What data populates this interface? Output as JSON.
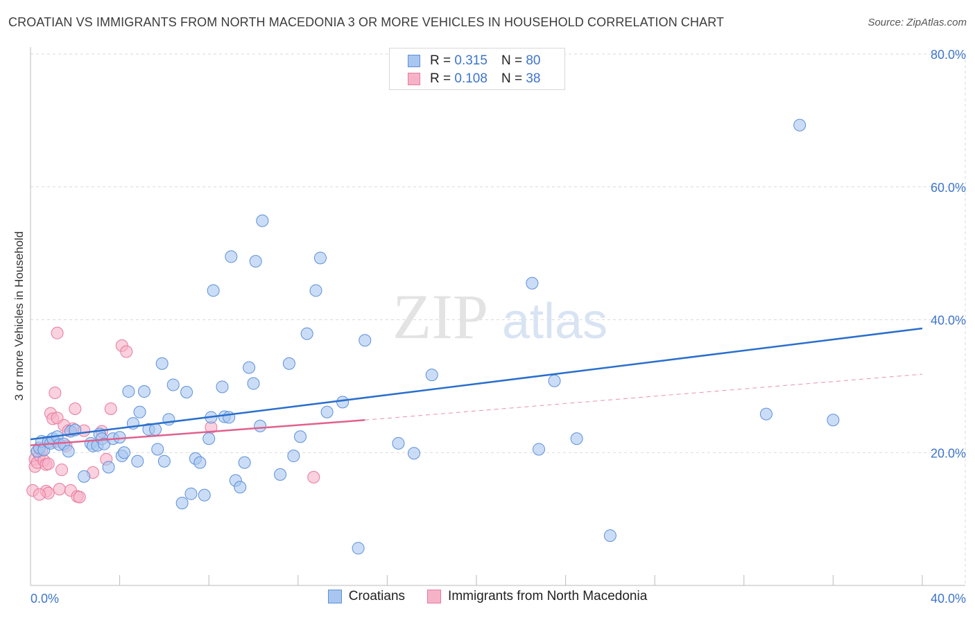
{
  "header": {
    "title": "CROATIAN VS IMMIGRANTS FROM NORTH MACEDONIA 3 OR MORE VEHICLES IN HOUSEHOLD CORRELATION CHART",
    "source": "Source: ZipAtlas.com"
  },
  "watermark": "ZIPatlas",
  "legend": {
    "r_label": "R =",
    "n_label": "N =",
    "series": [
      {
        "name": "Croatians",
        "r": "0.315",
        "n": "80"
      },
      {
        "name": "Immigrants from North Macedonia",
        "r": "0.108",
        "n": "38"
      }
    ]
  },
  "colors": {
    "croatians_fill": "#a9c6f0",
    "croatians_edge": "#5b8fd9",
    "croatians_line": "#2a6fcc",
    "macedonia_fill": "#f6b3c8",
    "macedonia_edge": "#e8789c",
    "macedonia_line": "#e0608e",
    "axis_text": "#3d74c9",
    "grid": "#d9d9d9"
  },
  "chart_data": {
    "type": "scatter",
    "title": "CROATIAN VS IMMIGRANTS FROM NORTH MACEDONIA 3 OR MORE VEHICLES IN HOUSEHOLD CORRELATION CHART",
    "xlabel": "",
    "ylabel": "3 or more Vehicles in Household",
    "xlim": [
      0,
      40
    ],
    "ylim": [
      0,
      80
    ],
    "x_tick_labels": [
      "0.0%",
      "40.0%"
    ],
    "y_ticks": [
      20,
      40,
      60,
      80
    ],
    "y_tick_labels": [
      "20.0%",
      "40.0%",
      "60.0%",
      "80.0%"
    ],
    "grid": true,
    "legend_position": "top-center",
    "series": [
      {
        "name": "Croatians",
        "r": 0.315,
        "n": 80,
        "trend": {
          "x": [
            0,
            40
          ],
          "y": [
            22.0,
            38.7
          ],
          "style": "solid"
        },
        "points": [
          [
            0.3,
            20.2
          ],
          [
            0.4,
            20.7
          ],
          [
            0.5,
            21.7
          ],
          [
            0.6,
            20.4
          ],
          [
            0.8,
            21.6
          ],
          [
            0.9,
            21.4
          ],
          [
            1.0,
            22.1
          ],
          [
            1.2,
            22.4
          ],
          [
            1.3,
            21.2
          ],
          [
            1.5,
            21.3
          ],
          [
            1.7,
            20.2
          ],
          [
            1.8,
            23.2
          ],
          [
            2.0,
            23.4
          ],
          [
            2.4,
            16.4
          ],
          [
            2.7,
            21.4
          ],
          [
            2.8,
            21.0
          ],
          [
            3.0,
            21.1
          ],
          [
            3.1,
            22.8
          ],
          [
            3.2,
            22.1
          ],
          [
            3.3,
            21.3
          ],
          [
            3.5,
            17.8
          ],
          [
            3.7,
            22.1
          ],
          [
            4.0,
            22.3
          ],
          [
            4.1,
            19.5
          ],
          [
            4.2,
            20.0
          ],
          [
            4.4,
            29.2
          ],
          [
            4.6,
            24.4
          ],
          [
            4.8,
            18.7
          ],
          [
            4.9,
            26.1
          ],
          [
            5.1,
            29.2
          ],
          [
            5.3,
            23.5
          ],
          [
            5.6,
            23.5
          ],
          [
            5.7,
            20.5
          ],
          [
            5.9,
            33.4
          ],
          [
            6.0,
            18.7
          ],
          [
            6.2,
            25.0
          ],
          [
            6.4,
            30.2
          ],
          [
            6.8,
            12.4
          ],
          [
            7.0,
            29.1
          ],
          [
            7.2,
            13.8
          ],
          [
            7.4,
            19.1
          ],
          [
            7.6,
            18.5
          ],
          [
            7.8,
            13.6
          ],
          [
            8.0,
            22.1
          ],
          [
            8.1,
            25.3
          ],
          [
            8.2,
            44.4
          ],
          [
            8.6,
            29.9
          ],
          [
            8.7,
            25.4
          ],
          [
            8.9,
            25.3
          ],
          [
            9.0,
            49.5
          ],
          [
            9.2,
            15.8
          ],
          [
            9.4,
            14.8
          ],
          [
            9.6,
            18.5
          ],
          [
            9.8,
            32.8
          ],
          [
            10.0,
            30.4
          ],
          [
            10.1,
            48.8
          ],
          [
            10.3,
            24.0
          ],
          [
            10.4,
            54.9
          ],
          [
            11.2,
            16.7
          ],
          [
            11.6,
            33.4
          ],
          [
            11.8,
            19.5
          ],
          [
            12.1,
            22.4
          ],
          [
            12.4,
            37.9
          ],
          [
            12.8,
            44.4
          ],
          [
            13.0,
            49.3
          ],
          [
            13.3,
            26.1
          ],
          [
            14.0,
            27.6
          ],
          [
            14.7,
            5.6
          ],
          [
            15.0,
            36.9
          ],
          [
            16.5,
            21.4
          ],
          [
            17.2,
            19.9
          ],
          [
            18.0,
            31.7
          ],
          [
            22.5,
            45.5
          ],
          [
            22.8,
            20.5
          ],
          [
            23.5,
            30.8
          ],
          [
            24.5,
            22.1
          ],
          [
            26.0,
            7.5
          ],
          [
            33.0,
            25.8
          ],
          [
            34.5,
            69.3
          ],
          [
            36.0,
            24.9
          ]
        ]
      },
      {
        "name": "Immigrants from North Macedonia",
        "r": 0.108,
        "n": 38,
        "trend": {
          "x": [
            0,
            15
          ],
          "y": [
            21.1,
            24.9
          ],
          "style": "solid",
          "extension": {
            "x": [
              15,
              40
            ],
            "y": [
              24.9,
              31.8
            ],
            "style": "dashed"
          }
        },
        "points": [
          [
            0.1,
            14.3
          ],
          [
            0.2,
            19.0
          ],
          [
            0.2,
            17.9
          ],
          [
            0.3,
            20.2
          ],
          [
            0.3,
            18.5
          ],
          [
            0.4,
            19.6
          ],
          [
            0.5,
            20.3
          ],
          [
            0.6,
            18.8
          ],
          [
            0.7,
            14.2
          ],
          [
            0.7,
            18.2
          ],
          [
            0.8,
            18.3
          ],
          [
            0.8,
            13.9
          ],
          [
            0.9,
            25.9
          ],
          [
            1.0,
            25.1
          ],
          [
            1.1,
            21.6
          ],
          [
            1.1,
            29.0
          ],
          [
            1.2,
            38.0
          ],
          [
            1.2,
            25.2
          ],
          [
            1.3,
            14.5
          ],
          [
            1.4,
            17.4
          ],
          [
            1.5,
            24.1
          ],
          [
            1.6,
            21.0
          ],
          [
            1.7,
            23.3
          ],
          [
            1.8,
            14.3
          ],
          [
            1.9,
            23.6
          ],
          [
            2.0,
            26.6
          ],
          [
            2.1,
            13.4
          ],
          [
            2.2,
            13.3
          ],
          [
            2.4,
            23.3
          ],
          [
            2.8,
            17.0
          ],
          [
            3.2,
            23.2
          ],
          [
            3.4,
            19.0
          ],
          [
            3.6,
            26.6
          ],
          [
            4.1,
            36.1
          ],
          [
            4.3,
            35.2
          ],
          [
            8.1,
            23.8
          ],
          [
            12.7,
            16.3
          ],
          [
            0.4,
            13.7
          ]
        ]
      }
    ]
  }
}
